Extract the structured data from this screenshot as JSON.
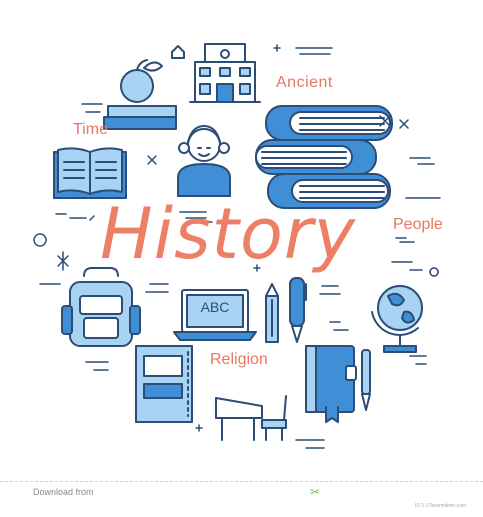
{
  "title": "History",
  "labels": {
    "time": "Time",
    "ancient": "Ancient",
    "people": "People",
    "religion": "Religion"
  },
  "laptop_text": "ABC",
  "footer": {
    "left": "Download from",
    "right": "ID 1 | Dreamstime.com"
  },
  "colors": {
    "accent": "#e8775e",
    "line": "#2b4d77",
    "fill_light": "#a9d3f2",
    "fill_mid": "#3f8ed6"
  },
  "icons": [
    "apple-on-books-icon",
    "school-building-icon",
    "girl-student-icon",
    "open-book-icon",
    "book-stack-icon",
    "backpack-icon",
    "laptop-icon",
    "pencil-icon",
    "pen-icon",
    "globe-icon",
    "notebook-icon",
    "school-desk-icon",
    "closed-book-icon",
    "fountain-pen-icon"
  ]
}
